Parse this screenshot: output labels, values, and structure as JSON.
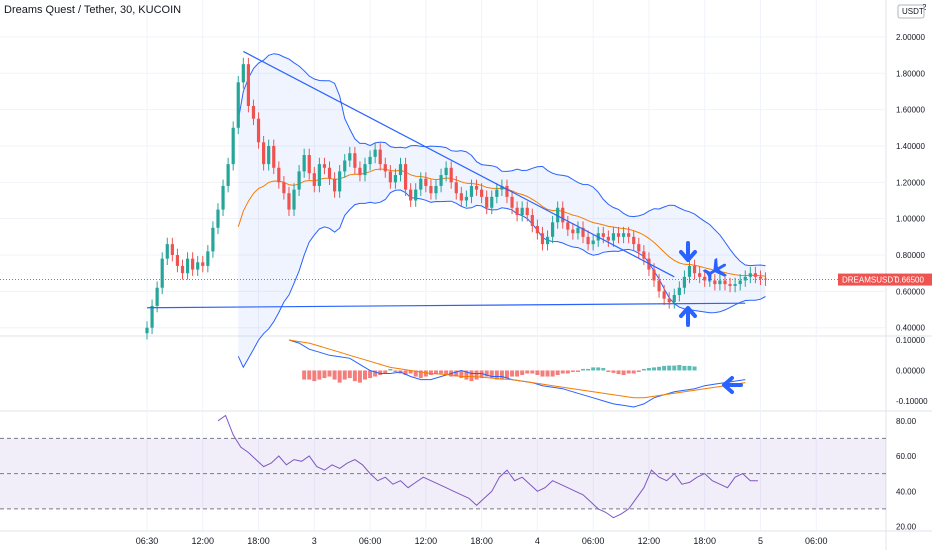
{
  "header": {
    "title": "Dreams Quest / Tether, 30, KUCOIN"
  },
  "chart_data": [
    {
      "type": "candlestick",
      "pane": "price",
      "currency": "USDT",
      "price_label": {
        "symbol": "DREAMSUSDT",
        "value": "0.66500"
      },
      "y_ticks": [
        "0.40000",
        "0.60000",
        "0.80000",
        "1.00000",
        "1.20000",
        "1.40000",
        "1.60000",
        "1.80000",
        "2.00000"
      ],
      "y_top_label": "2",
      "ylim": [
        0.36,
        2.17
      ],
      "close": [
        0.4,
        0.52,
        0.62,
        0.78,
        0.86,
        0.8,
        0.74,
        0.7,
        0.78,
        0.72,
        0.76,
        0.74,
        0.82,
        0.95,
        1.05,
        1.18,
        1.3,
        1.5,
        1.75,
        1.85,
        1.62,
        1.55,
        1.42,
        1.3,
        1.4,
        1.28,
        1.2,
        1.14,
        1.05,
        1.16,
        1.26,
        1.35,
        1.25,
        1.18,
        1.3,
        1.28,
        1.22,
        1.15,
        1.26,
        1.32,
        1.36,
        1.28,
        1.24,
        1.3,
        1.34,
        1.38,
        1.3,
        1.26,
        1.2,
        1.24,
        1.3,
        1.16,
        1.1,
        1.16,
        1.22,
        1.18,
        1.14,
        1.18,
        1.24,
        1.28,
        1.2,
        1.14,
        1.1,
        1.12,
        1.18,
        1.16,
        1.12,
        1.06,
        1.12,
        1.16,
        1.18,
        1.12,
        1.06,
        1.02,
        1.06,
        1.02,
        0.96,
        0.92,
        0.86,
        0.9,
        0.98,
        1.06,
        0.98,
        0.94,
        0.92,
        0.95,
        0.9,
        0.86,
        0.88,
        0.92,
        0.9,
        0.88,
        0.92,
        0.9,
        0.92,
        0.9,
        0.86,
        0.82,
        0.78,
        0.72,
        0.66,
        0.6,
        0.56,
        0.54,
        0.58,
        0.62,
        0.68,
        0.74,
        0.7,
        0.68,
        0.66,
        0.66,
        0.64,
        0.66,
        0.64,
        0.63,
        0.64,
        0.66,
        0.68,
        0.7,
        0.68,
        0.67,
        0.665
      ],
      "trendlines": [
        {
          "name": "upper",
          "from": [
            19,
            1.92
          ],
          "to": [
            104,
            0.68
          ]
        },
        {
          "name": "support",
          "from": [
            0,
            0.51
          ],
          "to": [
            118,
            0.535
          ]
        }
      ]
    },
    {
      "type": "macd",
      "pane": "macd",
      "y_ticks": [
        "0.10000",
        "0.00000",
        "-0.10000"
      ],
      "ylim": [
        -0.13,
        0.11
      ],
      "hist": [
        -0.03,
        -0.03,
        -0.035,
        -0.03,
        -0.025,
        -0.02,
        -0.03,
        -0.04,
        -0.03,
        -0.025,
        -0.035,
        -0.04,
        -0.03,
        -0.025,
        -0.02,
        -0.015,
        -0.01,
        0.005,
        -0.005,
        -0.01,
        -0.015,
        -0.01,
        -0.02,
        -0.025,
        -0.02,
        -0.015,
        -0.01,
        -0.01,
        -0.015,
        -0.02,
        -0.02,
        -0.025,
        -0.03,
        -0.035,
        -0.03,
        -0.025,
        -0.02,
        -0.025,
        -0.03,
        -0.03,
        -0.025,
        -0.02,
        -0.02,
        -0.015,
        -0.01,
        -0.01,
        -0.015,
        -0.02,
        -0.02,
        -0.02,
        -0.015,
        -0.01,
        -0.01,
        -0.005,
        -0.005,
        0.005,
        0.005,
        0.01,
        0.01,
        0.008,
        -0.005,
        -0.008,
        -0.012,
        -0.015,
        -0.01,
        -0.01,
        -0.005,
        0.005,
        0.008,
        0.01,
        0.012,
        0.015,
        0.016,
        0.016,
        0.018,
        0.015,
        0.015,
        0.013
      ],
      "macd": [
        0.1,
        0.09,
        0.07,
        0.06,
        0.05,
        0.045,
        0.04,
        0.02,
        0.0,
        -0.01,
        -0.01,
        -0.005,
        -0.02,
        -0.03,
        -0.03,
        -0.02,
        -0.01,
        0.0,
        -0.01,
        -0.01,
        -0.02,
        -0.02,
        -0.03,
        -0.035,
        -0.04,
        -0.05,
        -0.055,
        -0.06,
        -0.07,
        -0.08,
        -0.09,
        -0.1,
        -0.11,
        -0.115,
        -0.12,
        -0.11,
        -0.09,
        -0.08,
        -0.07,
        -0.065,
        -0.06,
        -0.05,
        -0.045,
        -0.04,
        -0.035,
        -0.03
      ],
      "signal": [
        0.1,
        0.095,
        0.09,
        0.08,
        0.07,
        0.06,
        0.05,
        0.04,
        0.03,
        0.02,
        0.01,
        0.005,
        0.0,
        -0.005,
        -0.01,
        -0.012,
        -0.015,
        -0.02,
        -0.02,
        -0.022,
        -0.025,
        -0.028,
        -0.03,
        -0.035,
        -0.04,
        -0.045,
        -0.05,
        -0.055,
        -0.06,
        -0.065,
        -0.07,
        -0.075,
        -0.08,
        -0.085,
        -0.09,
        -0.09,
        -0.085,
        -0.08,
        -0.075,
        -0.07,
        -0.065,
        -0.06,
        -0.055,
        -0.05,
        -0.045,
        -0.04
      ]
    },
    {
      "type": "line",
      "pane": "rsi",
      "y_ticks": [
        "80.00",
        "60.00",
        "40.00",
        "20.00"
      ],
      "ylim": [
        18,
        85
      ],
      "bands": [
        30,
        50,
        70
      ],
      "values": [
        80,
        83,
        72,
        65,
        62,
        58,
        54,
        56,
        60,
        55,
        58,
        57,
        60,
        54,
        52,
        55,
        53,
        56,
        58,
        55,
        50,
        46,
        48,
        44,
        46,
        42,
        45,
        48,
        46,
        44,
        42,
        40,
        38,
        36,
        32,
        36,
        40,
        48,
        52,
        46,
        48,
        44,
        40,
        42,
        46,
        44,
        42,
        40,
        38,
        34,
        30,
        28,
        25,
        27,
        30,
        36,
        42,
        52,
        48,
        46,
        50,
        44,
        45,
        48,
        50,
        46,
        44,
        42,
        48,
        50,
        46,
        46
      ],
      "xlim": [
        0,
        130
      ]
    }
  ],
  "x_axis": {
    "ticks": [
      "06:30",
      "12:00",
      "18:00",
      "3",
      "06:00",
      "12:00",
      "18:00",
      "4",
      "06:00",
      "12:00",
      "18:00",
      "5",
      "06:00"
    ],
    "tick_index": [
      0,
      11,
      22,
      33,
      44,
      55,
      66,
      77,
      88,
      99,
      110,
      121,
      132
    ]
  },
  "annotations": [
    {
      "icon": "arrow-down-icon",
      "color": "#2962ff"
    },
    {
      "icon": "arrow-up-icon",
      "color": "#2962ff"
    },
    {
      "icon": "airplane-icon",
      "color": "#2962ff"
    },
    {
      "icon": "arrow-left-icon",
      "color": "#2962ff"
    }
  ],
  "colors": {
    "up": "#26a69a",
    "down": "#ef5350",
    "bb": "#2962ff",
    "ema": "#f57c00",
    "rsi": "#7e57c2",
    "label": "#ef5350"
  }
}
